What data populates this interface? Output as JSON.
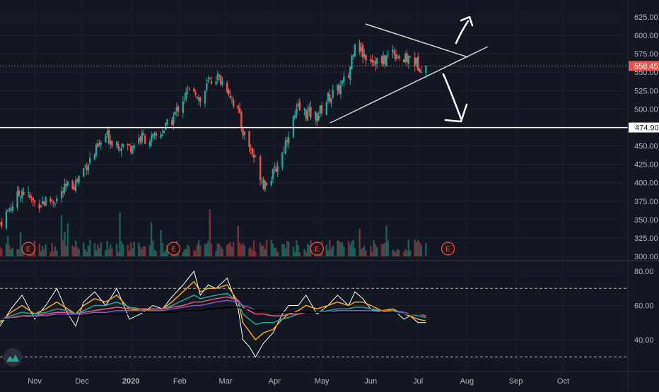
{
  "chart_data": [
    {
      "type": "candlestick",
      "title": "",
      "ylim": [
        300,
        630
      ],
      "y_ticks": [
        "625.00",
        "600.00",
        "575.00",
        "550.00",
        "525.00",
        "500.00",
        "475.00",
        "450.00",
        "425.00",
        "400.00",
        "375.00",
        "350.00",
        "325.00",
        "300.00"
      ],
      "x_ticks": [
        "Nov",
        "Dec",
        "2020",
        "Feb",
        "Mar",
        "Apr",
        "May",
        "Jun",
        "Jul",
        "Aug",
        "Sep",
        "Oct"
      ],
      "x_range": [
        "2019-10-10",
        "2020-10-25"
      ],
      "last_price": 558.45,
      "last_price_label": "558.45",
      "horizontal_line": 474.9,
      "horizontal_line_label": "474.90",
      "close_series": {
        "dates": [
          "2019-10-10",
          "2019-10-17",
          "2019-10-24",
          "2019-11-01",
          "2019-11-08",
          "2019-11-15",
          "2019-11-22",
          "2019-11-27",
          "2019-12-02",
          "2019-12-09",
          "2019-12-16",
          "2019-12-23",
          "2019-12-31",
          "2020-01-07",
          "2020-01-15",
          "2020-01-21",
          "2020-01-27",
          "2020-02-03",
          "2020-02-10",
          "2020-02-14",
          "2020-02-19",
          "2020-02-24",
          "2020-03-02",
          "2020-03-09",
          "2020-03-12",
          "2020-03-16",
          "2020-03-20",
          "2020-03-25",
          "2020-03-31",
          "2020-04-06",
          "2020-04-10",
          "2020-04-16",
          "2020-04-21",
          "2020-04-28",
          "2020-05-05",
          "2020-05-11",
          "2020-05-18",
          "2020-05-22",
          "2020-05-27",
          "2020-06-01",
          "2020-06-08",
          "2020-06-15",
          "2020-06-22",
          "2020-06-26",
          "2020-07-01",
          "2020-07-06"
        ],
        "values": [
          345,
          368,
          390,
          372,
          375,
          378,
          395,
          400,
          420,
          440,
          463,
          455,
          448,
          462,
          458,
          470,
          485,
          515,
          530,
          510,
          535,
          545,
          530,
          495,
          470,
          450,
          430,
          400,
          410,
          440,
          470,
          500,
          495,
          490,
          515,
          525,
          545,
          595,
          575,
          570,
          562,
          580,
          565,
          570,
          560,
          558
        ]
      },
      "volume_markers": [
        "E",
        "E",
        "E",
        "E"
      ],
      "annotations": [
        "up-arrow",
        "down-arrow",
        "symmetrical-triangle"
      ]
    },
    {
      "type": "line",
      "title": "",
      "ylim": [
        27,
        86
      ],
      "y_ticks": [
        "80.00",
        "60.00",
        "40.00"
      ],
      "bands": [
        70,
        30
      ],
      "series": [
        {
          "color": "#ffffff",
          "values": [
            48,
            58,
            66,
            52,
            60,
            70,
            55,
            48,
            62,
            68,
            60,
            70,
            52,
            55,
            60,
            58,
            65,
            72,
            80,
            66,
            72,
            70,
            76,
            58,
            40,
            36,
            30,
            38,
            44,
            55,
            60,
            60,
            66,
            55,
            60,
            66,
            60,
            68,
            64,
            58,
            56,
            58,
            52,
            54,
            50,
            50
          ]
        },
        {
          "color": "#f5a623",
          "values": [
            50,
            56,
            60,
            55,
            58,
            62,
            58,
            55,
            60,
            64,
            62,
            66,
            58,
            57,
            58,
            58,
            62,
            68,
            74,
            68,
            70,
            70,
            72,
            62,
            50,
            45,
            40,
            44,
            46,
            52,
            55,
            57,
            60,
            58,
            60,
            62,
            60,
            62,
            62,
            60,
            57,
            58,
            55,
            54,
            52,
            51
          ]
        },
        {
          "color": "#26a69a",
          "values": [
            51,
            54,
            56,
            55,
            56,
            58,
            57,
            55,
            57,
            60,
            60,
            62,
            59,
            58,
            58,
            58,
            60,
            63,
            66,
            64,
            65,
            66,
            67,
            62,
            55,
            52,
            49,
            50,
            50,
            52,
            53,
            55,
            56,
            56,
            57,
            58,
            58,
            59,
            59,
            58,
            57,
            57,
            56,
            55,
            54,
            53
          ]
        },
        {
          "color": "#e85d75",
          "values": [
            52,
            53,
            54,
            54,
            55,
            56,
            56,
            55,
            56,
            57,
            58,
            59,
            58,
            58,
            58,
            58,
            59,
            60,
            62,
            62,
            63,
            64,
            65,
            63,
            59,
            57,
            55,
            55,
            54,
            54,
            55,
            55,
            56,
            56,
            56,
            57,
            57,
            57,
            57,
            57,
            57,
            56,
            56,
            55,
            55,
            54
          ]
        },
        {
          "color": "#7e57c2",
          "values": [
            52,
            53,
            53,
            54,
            54,
            55,
            55,
            55,
            55,
            56,
            56,
            57,
            57,
            57,
            57,
            57,
            58,
            59,
            60,
            60,
            61,
            62,
            63,
            62,
            60,
            59,
            57,
            57,
            56,
            56,
            56,
            56,
            56,
            56,
            56,
            57,
            57,
            57,
            57,
            57,
            56,
            56,
            56,
            55,
            55,
            55
          ]
        },
        {
          "color": "#000000",
          "values": [
            52,
            52,
            53,
            53,
            53,
            54,
            54,
            54,
            54,
            55,
            55,
            55,
            55,
            56,
            56,
            56,
            56,
            57,
            57,
            57,
            58,
            58,
            59,
            59,
            58,
            58,
            57,
            57,
            56,
            56,
            56,
            56,
            56,
            56,
            56,
            56,
            56,
            56,
            56,
            56,
            56,
            56,
            55,
            55,
            55,
            55
          ]
        }
      ]
    }
  ]
}
